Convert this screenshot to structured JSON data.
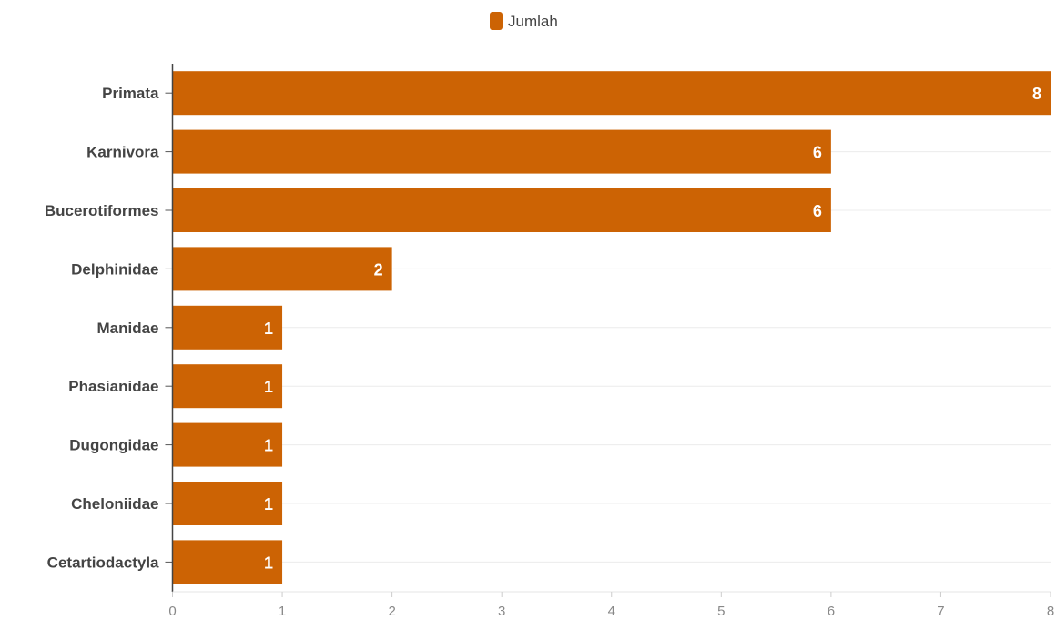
{
  "chart_data": {
    "type": "bar",
    "orientation": "horizontal",
    "categories": [
      "Primata",
      "Karnivora",
      "Bucerotiformes",
      "Delphinidae",
      "Manidae",
      "Phasianidae",
      "Dugongidae",
      "Cheloniidae",
      "Cetartiodactyla"
    ],
    "series": [
      {
        "name": "Jumlah",
        "values": [
          8,
          6,
          6,
          2,
          1,
          1,
          1,
          1,
          1
        ],
        "color": "#cc6304"
      }
    ],
    "xlim": [
      0,
      8
    ],
    "xticks": [
      "0",
      "1",
      "2",
      "3",
      "4",
      "5",
      "6",
      "7",
      "8"
    ],
    "title": "",
    "xlabel": "",
    "ylabel": "",
    "legend_position": "top-center",
    "grid": true,
    "data_labels": true
  }
}
